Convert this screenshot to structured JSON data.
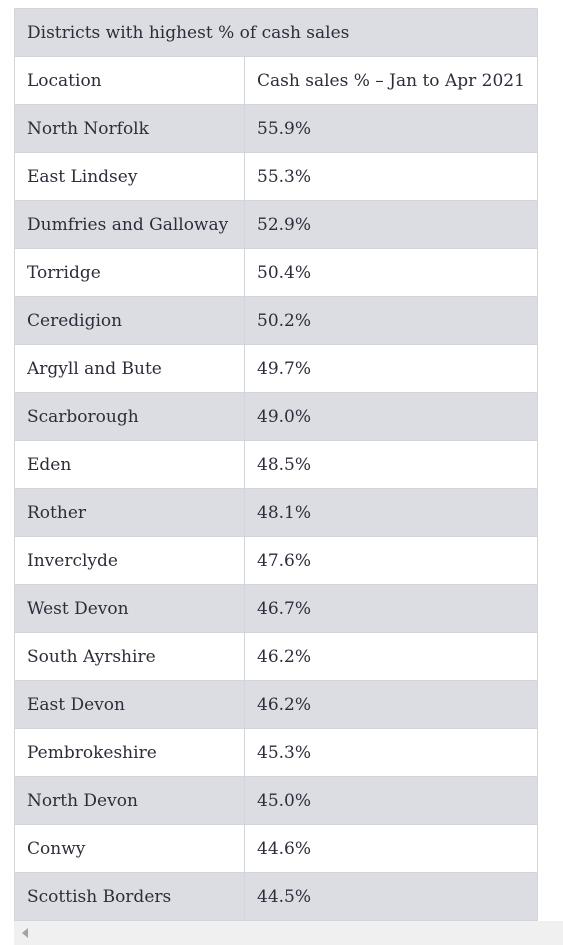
{
  "table": {
    "title": "Districts with highest % of cash sales",
    "headers": [
      "Location",
      "Cash sales % – Jan to Apr 2021"
    ],
    "rows": [
      {
        "location": "North Norfolk",
        "value": "55.9%"
      },
      {
        "location": "East Lindsey",
        "value": "55.3%"
      },
      {
        "location": "Dumfries and Galloway",
        "value": "52.9%"
      },
      {
        "location": "Torridge",
        "value": "50.4%"
      },
      {
        "location": "Ceredigion",
        "value": "50.2%"
      },
      {
        "location": "Argyll and Bute",
        "value": "49.7%"
      },
      {
        "location": "Scarborough",
        "value": "49.0%"
      },
      {
        "location": "Eden",
        "value": "48.5%"
      },
      {
        "location": "Rother",
        "value": "48.1%"
      },
      {
        "location": "Inverclyde",
        "value": "47.6%"
      },
      {
        "location": "West Devon",
        "value": "46.7%"
      },
      {
        "location": "South Ayrshire",
        "value": "46.2%"
      },
      {
        "location": "East Devon",
        "value": "46.2%"
      },
      {
        "location": "Pembrokeshire",
        "value": "45.3%"
      },
      {
        "location": "North Devon",
        "value": "45.0%"
      },
      {
        "location": "Conwy",
        "value": "44.6%"
      },
      {
        "location": "Scottish Borders",
        "value": "44.5%"
      }
    ]
  },
  "scrollbar": {
    "left_arrow_icon": "chevron-left-icon"
  }
}
